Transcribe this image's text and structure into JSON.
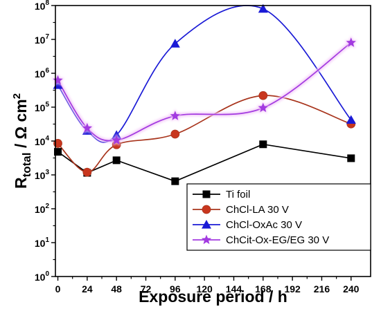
{
  "chart_data": {
    "type": "line",
    "xlabel": "Exposure period / h",
    "ylabel": {
      "prefix": "R",
      "subscript": "total",
      "unit": " / Ω cm",
      "superscript": "2"
    },
    "y_scale": "log",
    "xlim": [
      -2,
      256
    ],
    "ylim": [
      1,
      100000000
    ],
    "x_ticks": [
      0,
      24,
      48,
      72,
      96,
      120,
      144,
      168,
      192,
      216,
      240
    ],
    "y_ticks": [
      {
        "value": 1,
        "base": "10",
        "exp": "0"
      },
      {
        "value": 10,
        "base": "10",
        "exp": "1"
      },
      {
        "value": 100,
        "base": "10",
        "exp": "2"
      },
      {
        "value": 1000,
        "base": "10",
        "exp": "3"
      },
      {
        "value": 10000,
        "base": "10",
        "exp": "4"
      },
      {
        "value": 100000,
        "base": "10",
        "exp": "5"
      },
      {
        "value": 1000000,
        "base": "10",
        "exp": "6"
      },
      {
        "value": 10000000,
        "base": "10",
        "exp": "7"
      },
      {
        "value": 100000000,
        "base": "10",
        "exp": "8"
      }
    ],
    "grid": false,
    "legend_position": "bottom-right",
    "series": [
      {
        "name": "Ti foil",
        "color": "#000000",
        "marker": "square",
        "curve": "straight",
        "x": [
          0,
          24,
          48,
          96,
          168,
          240
        ],
        "y": [
          4800,
          1150,
          2700,
          650,
          8000,
          3100
        ]
      },
      {
        "name": "ChCl-LA 30 V",
        "color": "#a8341c",
        "marker_fill": "#c8361e",
        "marker": "circle",
        "curve": "smooth",
        "x": [
          0,
          24,
          48,
          96,
          168,
          240
        ],
        "y": [
          8500,
          1200,
          7800,
          16000,
          220000,
          32000
        ]
      },
      {
        "name": "ChCl-OxAc 30 V",
        "color": "#1a1ad6",
        "marker": "triangle",
        "curve": "smooth",
        "x": [
          0,
          24,
          48,
          96,
          168,
          240
        ],
        "y": [
          450000,
          20000,
          15000,
          7500000,
          80000000,
          42000
        ]
      },
      {
        "name": "ChCit-Ox-EG/EG 30 V",
        "color": "#a23ae0",
        "marker": "star",
        "curve": "smooth",
        "x": [
          0,
          24,
          48,
          96,
          168,
          240
        ],
        "y": [
          620000,
          24000,
          10500,
          55000,
          95000,
          8000000
        ]
      }
    ]
  }
}
